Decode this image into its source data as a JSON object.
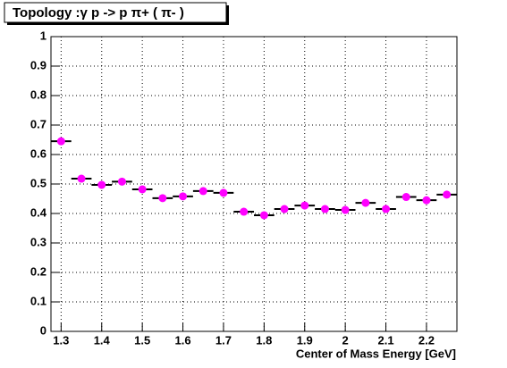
{
  "chart_data": {
    "type": "scatter",
    "title": "Topology :γ p -> p π+ ( π- )",
    "x_label": "Center of Mass Energy [GeV]",
    "x": [
      1.3,
      1.35,
      1.4,
      1.45,
      1.5,
      1.55,
      1.6,
      1.65,
      1.7,
      1.75,
      1.8,
      1.85,
      1.9,
      1.95,
      2.0,
      2.05,
      2.1,
      2.15,
      2.2,
      2.25
    ],
    "values": [
      0.645,
      0.518,
      0.497,
      0.508,
      0.482,
      0.452,
      0.458,
      0.476,
      0.47,
      0.406,
      0.394,
      0.415,
      0.427,
      0.415,
      0.412,
      0.436,
      0.415,
      0.456,
      0.445,
      0.464
    ],
    "color": "#ff00ff",
    "xlim": [
      1.275,
      2.275
    ],
    "ylim": [
      0,
      1
    ],
    "xticks": [
      1.3,
      1.4,
      1.5,
      1.6,
      1.7,
      1.8,
      1.9,
      2,
      2.1,
      2.2
    ],
    "yticks": [
      0,
      0.1,
      0.2,
      0.3,
      0.4,
      0.5,
      0.6,
      0.7,
      0.8,
      0.9,
      1
    ],
    "grid": true
  }
}
